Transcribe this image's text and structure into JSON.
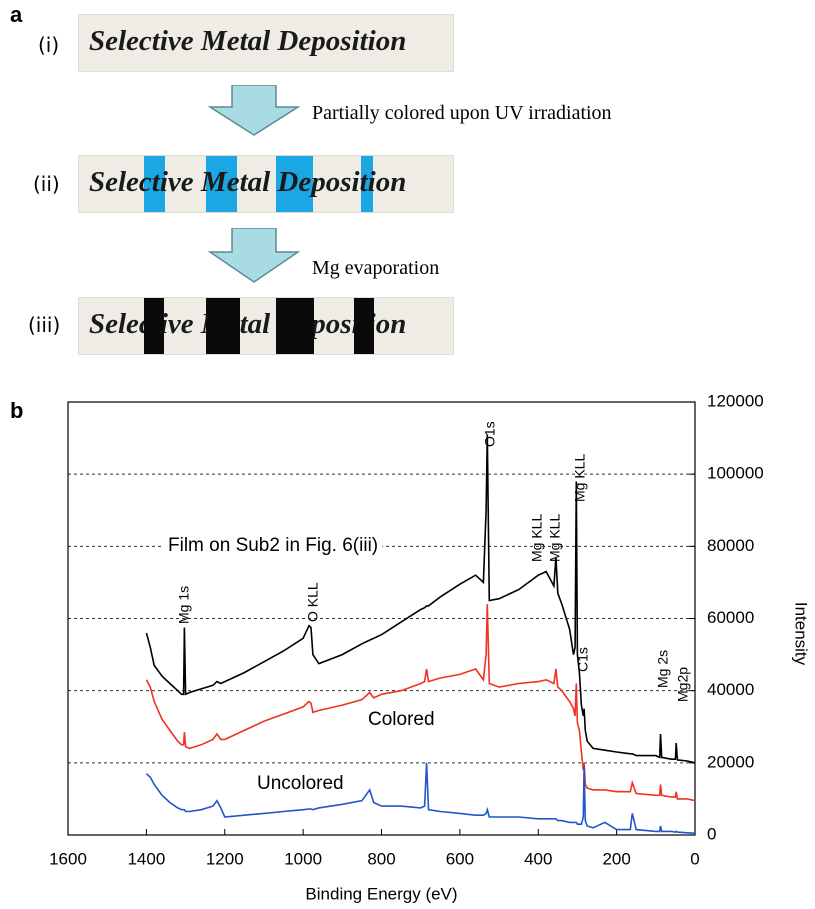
{
  "panel_a": {
    "label": "a",
    "steps": [
      {
        "label": "(i)",
        "text": "Selective Metal Deposition"
      },
      {
        "label": "(ii)",
        "text": "Selective Metal Deposition"
      },
      {
        "label": "(iii)",
        "text": "Selective Metal Deposition"
      }
    ],
    "arrows": [
      "Partially colored upon UV irradiation",
      "Mg evaporation"
    ]
  },
  "panel_b_label": "b",
  "chart_data": {
    "type": "line",
    "x_label": "Binding Energy (eV)",
    "y_label": "Intensity",
    "xlim": [
      1600,
      0
    ],
    "xticks": [
      1600,
      1400,
      1200,
      1000,
      800,
      600,
      400,
      200,
      0
    ],
    "ylim": [
      0,
      120000
    ],
    "yticks": [
      0,
      20000,
      40000,
      60000,
      80000,
      100000,
      120000
    ],
    "y_axis_side": "right",
    "grid": true,
    "annotations": [
      "O1s",
      "Mg KLL",
      "Mg KLL",
      "Mg KLL",
      "Mg 1s",
      "O KLL",
      "C1s",
      "Mg 2s",
      "Mg2p"
    ],
    "x": [
      1400,
      1390,
      1380,
      1360,
      1340,
      1320,
      1310,
      1305,
      1303,
      1300,
      1290,
      1260,
      1230,
      1220,
      1210,
      1200,
      1150,
      1100,
      1050,
      1000,
      985,
      980,
      975,
      960,
      900,
      850,
      830,
      820,
      800,
      750,
      700,
      690,
      685,
      680,
      650,
      600,
      560,
      540,
      533,
      530,
      525,
      500,
      450,
      400,
      380,
      360,
      355,
      350,
      340,
      320,
      310,
      306,
      303,
      300,
      295,
      290,
      285,
      283,
      280,
      275,
      260,
      230,
      200,
      165,
      160,
      150,
      100,
      90,
      88,
      85,
      60,
      50,
      48,
      45,
      20,
      0
    ],
    "series": [
      {
        "name": "Film on Sub2 in Fig. 6(iii)",
        "color": "#000000",
        "values": [
          56000,
          52000,
          47000,
          44000,
          42000,
          40000,
          39000,
          39000,
          57500,
          39000,
          39500,
          40500,
          41500,
          42500,
          42000,
          42500,
          45000,
          48000,
          51000,
          54500,
          58000,
          57500,
          50000,
          47500,
          50000,
          53000,
          54000,
          54500,
          55500,
          59000,
          62500,
          63000,
          63500,
          63500,
          66000,
          69500,
          72000,
          70000,
          90000,
          111000,
          65000,
          65500,
          68000,
          72000,
          73000,
          69000,
          77000,
          67000,
          64000,
          57000,
          50000,
          52000,
          98000,
          50000,
          45000,
          36000,
          33000,
          35000,
          29000,
          26000,
          24000,
          23500,
          23000,
          22500,
          22500,
          22000,
          22000,
          21500,
          28000,
          21500,
          21000,
          21000,
          25500,
          20800,
          20500,
          20000
        ]
      },
      {
        "name": "Colored",
        "color": "#ee3322",
        "values": [
          43000,
          41000,
          37000,
          32000,
          29000,
          26000,
          25000,
          25000,
          28500,
          24500,
          24000,
          25000,
          26500,
          28000,
          26500,
          26500,
          29000,
          31500,
          33500,
          35500,
          37000,
          36500,
          34000,
          34500,
          36000,
          37500,
          39500,
          38000,
          39000,
          40000,
          42000,
          42500,
          46000,
          42500,
          43500,
          44500,
          46000,
          43000,
          50000,
          64000,
          42000,
          41000,
          42000,
          42500,
          43000,
          42000,
          46000,
          41000,
          40000,
          37000,
          35000,
          33000,
          42000,
          31000,
          29000,
          23000,
          18000,
          20000,
          14000,
          13000,
          12500,
          12500,
          12000,
          12000,
          14500,
          11500,
          11000,
          11000,
          14000,
          11000,
          10500,
          10500,
          12000,
          10000,
          10000,
          9500
        ]
      },
      {
        "name": "Uncolored",
        "color": "#2255cc",
        "values": [
          17000,
          16000,
          14000,
          11000,
          9000,
          7500,
          7000,
          7000,
          7000,
          6500,
          6500,
          7000,
          8000,
          9500,
          7500,
          5000,
          5500,
          6000,
          6500,
          7000,
          7200,
          7200,
          7000,
          7500,
          8500,
          9500,
          12500,
          9000,
          8000,
          8000,
          7500,
          8000,
          20000,
          7000,
          6500,
          6000,
          5500,
          5500,
          6000,
          7000,
          5000,
          5000,
          5000,
          4500,
          4500,
          4500,
          4500,
          4000,
          4000,
          3500,
          3500,
          3500,
          3500,
          3000,
          3000,
          3000,
          5000,
          19000,
          4000,
          2500,
          2000,
          3500,
          1500,
          1500,
          6000,
          1500,
          1000,
          1000,
          2500,
          1000,
          1000,
          800,
          1000,
          800,
          600,
          500
        ]
      }
    ]
  }
}
